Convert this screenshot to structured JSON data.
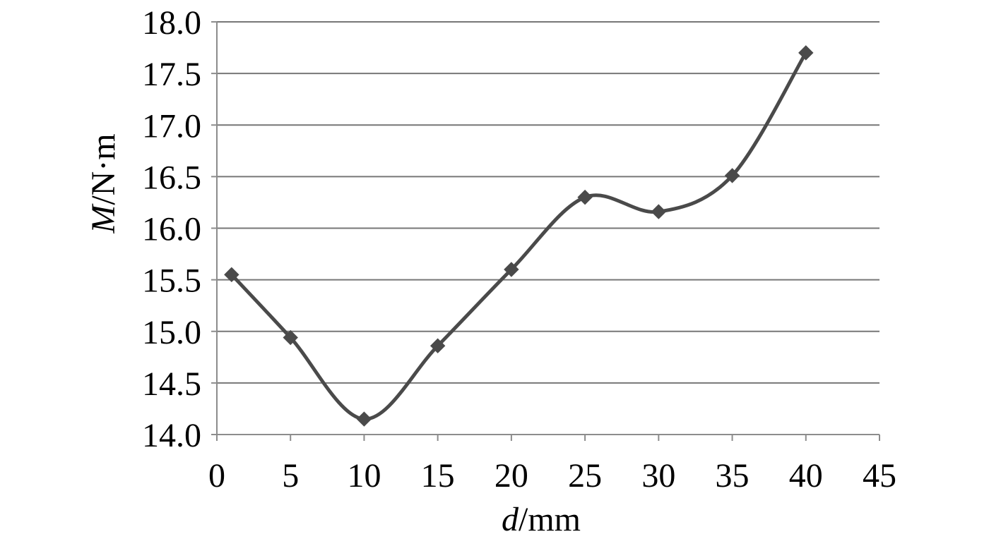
{
  "chart_data": {
    "type": "line",
    "xlabel": {
      "var": "d",
      "unit": "/mm"
    },
    "ylabel": {
      "var": "M",
      "unit": "/N·m"
    },
    "xlim": [
      0,
      45
    ],
    "ylim": [
      14.0,
      18.0
    ],
    "x_ticks": [
      0,
      5,
      10,
      15,
      20,
      25,
      30,
      35,
      40,
      45
    ],
    "y_ticks": [
      14.0,
      14.5,
      15.0,
      15.5,
      16.0,
      16.5,
      17.0,
      17.5,
      18.0
    ],
    "x_tick_labels": [
      "0",
      "5",
      "10",
      "15",
      "20",
      "25",
      "30",
      "35",
      "40",
      "45"
    ],
    "y_tick_labels": [
      "14.0",
      "14.5",
      "15.0",
      "15.5",
      "16.0",
      "16.5",
      "17.0",
      "17.5",
      "18.0"
    ],
    "grid": {
      "horizontal": true,
      "vertical": false
    },
    "smooth": true,
    "marker": "diamond",
    "series": [
      {
        "x": [
          1,
          5,
          10,
          15,
          20,
          25,
          30,
          35,
          40
        ],
        "values": [
          15.55,
          14.94,
          14.15,
          14.86,
          15.6,
          16.3,
          16.16,
          16.51,
          17.7
        ]
      }
    ],
    "colors": {
      "line": "#4a4a4a",
      "marker": "#4a4a4a",
      "grid": "#777777",
      "axis": "#8c8c8c"
    }
  }
}
